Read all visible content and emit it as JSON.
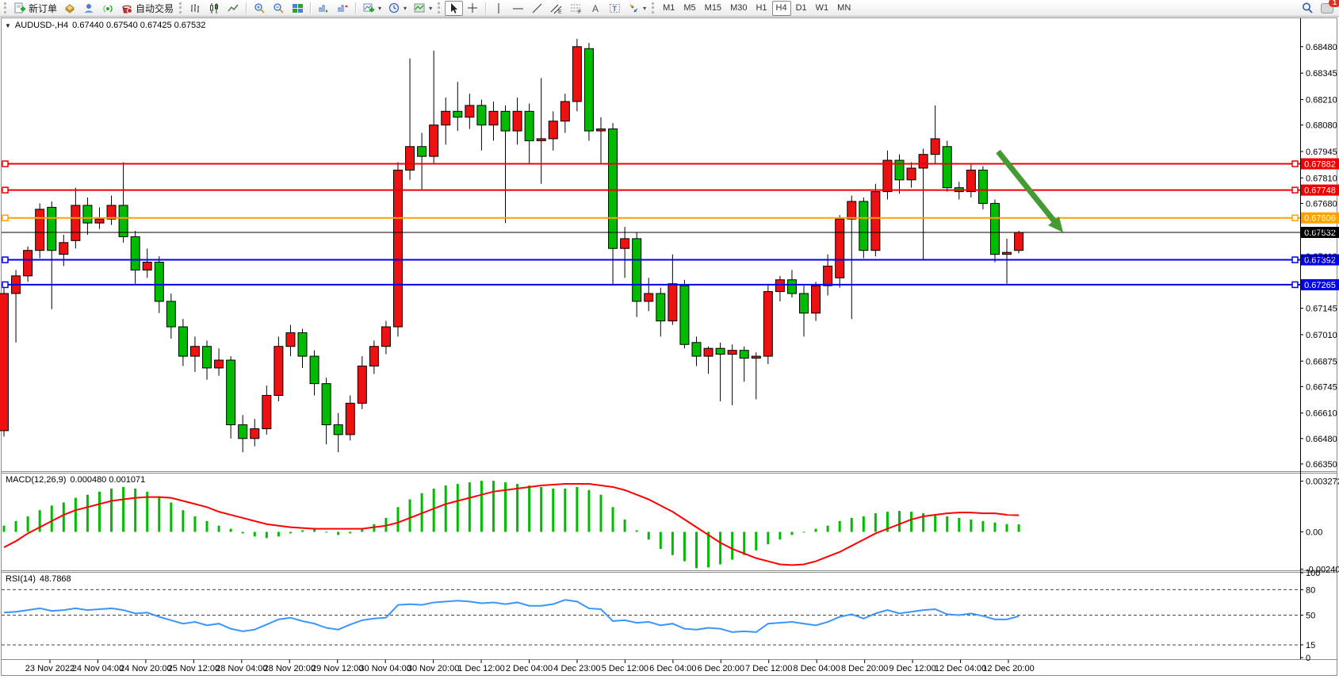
{
  "toolbar": {
    "new_order": "新订单",
    "autotrade": "自动交易",
    "timeframes": [
      "M1",
      "M5",
      "M15",
      "M30",
      "H1",
      "H4",
      "D1",
      "W1",
      "MN"
    ],
    "active_timeframe": "H4",
    "badge": "1",
    "icon_names": [
      "new-order-icon",
      "history-icon",
      "profile-icon",
      "signals-icon",
      "autotrade-icon",
      "bar-chart-icon",
      "candlestick-chart-icon",
      "line-chart-icon",
      "zoom-in-icon",
      "zoom-out-icon",
      "tile-windows-icon",
      "new-chart-icon",
      "period-clock-icon",
      "templates-icon",
      "cursor-icon",
      "crosshair-icon",
      "vertical-line-icon",
      "horizontal-line-icon",
      "trendline-icon",
      "equidistant-channel-icon",
      "fibonacci-icon",
      "text-icon",
      "text-label-icon",
      "arrows-icon",
      "search-icon",
      "notification-icon"
    ]
  },
  "chart": {
    "symbol": "AUDUSD-,H4",
    "ohlc": "0.67440 0.67540 0.67425 0.67532"
  },
  "indicators": {
    "macd": {
      "name": "MACD(12,26,9)",
      "values": "0.000480 0.001071"
    },
    "rsi": {
      "name": "RSI(14)",
      "value": "48.7868"
    }
  },
  "chart_data": {
    "type": "candlestick",
    "title": "AUDUSD-,H4",
    "price_axis_ticks": [
      "0.68480",
      "0.68345",
      "0.68210",
      "0.68080",
      "0.67945",
      "0.67810",
      "0.67680",
      "0.67545",
      "0.67410",
      "0.67145",
      "0.67010",
      "0.66875",
      "0.66745",
      "0.66610",
      "0.66480",
      "0.66350"
    ],
    "time_axis_labels": [
      "23 Nov 2022",
      "24 Nov 04:00",
      "24 Nov 20:00",
      "25 Nov 12:00",
      "28 Nov 04:00",
      "28 Nov 20:00",
      "29 Nov 12:00",
      "30 Nov 04:00",
      "30 Nov 20:00",
      "1 Dec 12:00",
      "2 Dec 04:00",
      "4 Dec 23:00",
      "5 Dec 12:00",
      "6 Dec 04:00",
      "6 Dec 20:00",
      "7 Dec 12:00",
      "8 Dec 04:00",
      "8 Dec 20:00",
      "9 Dec 12:00",
      "12 Dec 04:00",
      "12 Dec 20:00"
    ],
    "levels": [
      {
        "label": "0.67882",
        "value": 0.67882,
        "color": "#ee0000",
        "kind": "resistance"
      },
      {
        "label": "0.67748",
        "value": 0.67748,
        "color": "#ee0000",
        "kind": "resistance"
      },
      {
        "label": "0.67606",
        "value": 0.67606,
        "color": "#ffa200",
        "kind": "pivot"
      },
      {
        "label": "0.67532",
        "value": 0.67532,
        "color": "#000000",
        "kind": "current-price"
      },
      {
        "label": "0.67392",
        "value": 0.67392,
        "color": "#0000ee",
        "kind": "support"
      },
      {
        "label": "0.67265",
        "value": 0.67265,
        "color": "#0000ee",
        "kind": "support"
      }
    ],
    "colors": {
      "up": "#ee1111",
      "down": "#00bb00",
      "wick": "#000000",
      "macd_hist": "#00bb00",
      "macd_signal": "#ff0000",
      "rsi_line": "#3a95fc",
      "arrow": "#459a33"
    },
    "candles_ohlc": [
      [
        0.6652,
        0.6726,
        0.6649,
        0.6722
      ],
      [
        0.6722,
        0.6734,
        0.6697,
        0.6731
      ],
      [
        0.6731,
        0.6746,
        0.6728,
        0.6744
      ],
      [
        0.6744,
        0.6768,
        0.674,
        0.6765
      ],
      [
        0.6766,
        0.6769,
        0.6714,
        0.6744
      ],
      [
        0.6742,
        0.6752,
        0.6736,
        0.6748
      ],
      [
        0.6749,
        0.6776,
        0.6745,
        0.6767
      ],
      [
        0.6767,
        0.6771,
        0.6752,
        0.6758
      ],
      [
        0.6758,
        0.6766,
        0.6755,
        0.676
      ],
      [
        0.676,
        0.6772,
        0.6757,
        0.6767
      ],
      [
        0.6767,
        0.6789,
        0.6748,
        0.6751
      ],
      [
        0.6751,
        0.6754,
        0.6727,
        0.6734
      ],
      [
        0.6734,
        0.6745,
        0.673,
        0.6738
      ],
      [
        0.6738,
        0.6741,
        0.6712,
        0.6718
      ],
      [
        0.6718,
        0.6722,
        0.6699,
        0.6705
      ],
      [
        0.6705,
        0.6709,
        0.6685,
        0.669
      ],
      [
        0.669,
        0.67,
        0.6682,
        0.6695
      ],
      [
        0.6695,
        0.6698,
        0.6678,
        0.6684
      ],
      [
        0.6684,
        0.6694,
        0.668,
        0.6688
      ],
      [
        0.6688,
        0.669,
        0.6648,
        0.6655
      ],
      [
        0.6655,
        0.666,
        0.6641,
        0.6648
      ],
      [
        0.6648,
        0.6658,
        0.6644,
        0.6653
      ],
      [
        0.6653,
        0.6675,
        0.665,
        0.667
      ],
      [
        0.667,
        0.67,
        0.6667,
        0.6695
      ],
      [
        0.6695,
        0.6706,
        0.669,
        0.6702
      ],
      [
        0.6702,
        0.6704,
        0.6684,
        0.669
      ],
      [
        0.669,
        0.6693,
        0.667,
        0.6676
      ],
      [
        0.6676,
        0.6679,
        0.6645,
        0.6655
      ],
      [
        0.6655,
        0.6661,
        0.6641,
        0.665
      ],
      [
        0.665,
        0.667,
        0.6647,
        0.6666
      ],
      [
        0.6666,
        0.669,
        0.6663,
        0.6685
      ],
      [
        0.6685,
        0.6698,
        0.6681,
        0.6695
      ],
      [
        0.6695,
        0.6708,
        0.6691,
        0.6705
      ],
      [
        0.6705,
        0.6789,
        0.67,
        0.6785
      ],
      [
        0.6785,
        0.6842,
        0.678,
        0.6797
      ],
      [
        0.6797,
        0.6804,
        0.6775,
        0.6792
      ],
      [
        0.6792,
        0.6846,
        0.6788,
        0.6808
      ],
      [
        0.6808,
        0.6822,
        0.6798,
        0.6815
      ],
      [
        0.6815,
        0.683,
        0.6805,
        0.6812
      ],
      [
        0.6812,
        0.6824,
        0.6806,
        0.6818
      ],
      [
        0.6818,
        0.6821,
        0.6795,
        0.6808
      ],
      [
        0.6808,
        0.682,
        0.68,
        0.6815
      ],
      [
        0.6815,
        0.6818,
        0.6758,
        0.6805
      ],
      [
        0.6805,
        0.6822,
        0.6798,
        0.6815
      ],
      [
        0.6815,
        0.6819,
        0.6788,
        0.68
      ],
      [
        0.68,
        0.6832,
        0.6778,
        0.6801
      ],
      [
        0.6801,
        0.6815,
        0.6795,
        0.681
      ],
      [
        0.681,
        0.6824,
        0.6804,
        0.682
      ],
      [
        0.682,
        0.6852,
        0.6815,
        0.6848
      ],
      [
        0.6847,
        0.685,
        0.68,
        0.6805
      ],
      [
        0.6805,
        0.6812,
        0.6788,
        0.6806
      ],
      [
        0.6806,
        0.6809,
        0.6726,
        0.6745
      ],
      [
        0.6745,
        0.6756,
        0.673,
        0.675
      ],
      [
        0.675,
        0.6753,
        0.671,
        0.6718
      ],
      [
        0.6718,
        0.673,
        0.6713,
        0.6722
      ],
      [
        0.6722,
        0.6725,
        0.67,
        0.6708
      ],
      [
        0.6708,
        0.6742,
        0.6706,
        0.6727
      ],
      [
        0.6726,
        0.6729,
        0.6694,
        0.6696
      ],
      [
        0.6697,
        0.67,
        0.6685,
        0.669
      ],
      [
        0.669,
        0.6695,
        0.6681,
        0.6694
      ],
      [
        0.6694,
        0.6697,
        0.6667,
        0.6691
      ],
      [
        0.6691,
        0.6696,
        0.6665,
        0.6693
      ],
      [
        0.6693,
        0.6695,
        0.6677,
        0.6689
      ],
      [
        0.6689,
        0.6692,
        0.6668,
        0.669
      ],
      [
        0.669,
        0.6727,
        0.6686,
        0.6723
      ],
      [
        0.6723,
        0.6731,
        0.6718,
        0.6729
      ],
      [
        0.6729,
        0.6734,
        0.672,
        0.6722
      ],
      [
        0.6722,
        0.6726,
        0.67,
        0.6712
      ],
      [
        0.6712,
        0.6728,
        0.6708,
        0.6726
      ],
      [
        0.6726,
        0.6742,
        0.6721,
        0.6736
      ],
      [
        0.673,
        0.6762,
        0.6725,
        0.676
      ],
      [
        0.676,
        0.6772,
        0.6709,
        0.6769
      ],
      [
        0.6769,
        0.6771,
        0.674,
        0.6744
      ],
      [
        0.6744,
        0.6778,
        0.6741,
        0.6774
      ],
      [
        0.6774,
        0.6795,
        0.677,
        0.679
      ],
      [
        0.679,
        0.6793,
        0.6773,
        0.678
      ],
      [
        0.678,
        0.6789,
        0.6776,
        0.6786
      ],
      [
        0.6786,
        0.6796,
        0.6739,
        0.6793
      ],
      [
        0.6793,
        0.6818,
        0.6788,
        0.6801
      ],
      [
        0.6797,
        0.68,
        0.6774,
        0.6776
      ],
      [
        0.6776,
        0.6779,
        0.677,
        0.6774
      ],
      [
        0.6774,
        0.6788,
        0.6771,
        0.6785
      ],
      [
        0.6785,
        0.6787,
        0.6765,
        0.6768
      ],
      [
        0.6768,
        0.677,
        0.6738,
        0.6742
      ],
      [
        0.6742,
        0.675,
        0.6727,
        0.6743
      ],
      [
        0.6744,
        0.6754,
        0.67425,
        0.67532
      ]
    ],
    "macd": {
      "name": "MACD(12,26,9)",
      "axis_ticks": [
        "0.003272",
        "0.00",
        "-0.002409"
      ],
      "histogram": [
        0.0004,
        0.0007,
        0.001,
        0.0014,
        0.0017,
        0.0019,
        0.0022,
        0.0024,
        0.0026,
        0.0028,
        0.0029,
        0.0028,
        0.0026,
        0.0023,
        0.0019,
        0.0014,
        0.001,
        0.0007,
        0.0004,
        0.0002,
        -0.0001,
        -0.0003,
        -0.0004,
        -0.0003,
        -0.0001,
        0.0001,
        0.0002,
        0.0,
        -0.0002,
        -0.0001,
        0.0002,
        0.0005,
        0.0009,
        0.0016,
        0.0021,
        0.0025,
        0.0028,
        0.003,
        0.0031,
        0.0032,
        0.0033,
        0.0033,
        0.0032,
        0.0031,
        0.003,
        0.0029,
        0.0028,
        0.0028,
        0.0029,
        0.0027,
        0.0024,
        0.0016,
        0.0008,
        0.0001,
        -0.0005,
        -0.0011,
        -0.0015,
        -0.0019,
        -0.00235,
        -0.0023,
        -0.0021,
        -0.0018,
        -0.0015,
        -0.0012,
        -0.0008,
        -0.0005,
        -0.0002,
        0.0,
        0.0002,
        0.0004,
        0.0007,
        0.0009,
        0.001,
        0.0012,
        0.0013,
        0.00135,
        0.0013,
        0.0012,
        0.0011,
        0.001,
        0.0009,
        0.0008,
        0.0007,
        0.0006,
        0.0005,
        0.00048
      ],
      "signal": [
        -0.001,
        -0.0006,
        -0.0001,
        0.0003,
        0.0007,
        0.0011,
        0.0014,
        0.0016,
        0.0018,
        0.002,
        0.0021,
        0.0022,
        0.00225,
        0.00225,
        0.0022,
        0.002,
        0.0018,
        0.0016,
        0.0013,
        0.0011,
        0.0009,
        0.0007,
        0.0005,
        0.0004,
        0.0003,
        0.00025,
        0.0002,
        0.0002,
        0.0002,
        0.0002,
        0.0002,
        0.0003,
        0.0004,
        0.0006,
        0.0009,
        0.0012,
        0.0015,
        0.0018,
        0.002,
        0.0022,
        0.0024,
        0.0026,
        0.0027,
        0.0028,
        0.0029,
        0.003,
        0.00305,
        0.0031,
        0.0031,
        0.0031,
        0.003,
        0.0029,
        0.0027,
        0.0024,
        0.0021,
        0.0017,
        0.0013,
        0.0008,
        0.0003,
        -0.0002,
        -0.0007,
        -0.0011,
        -0.0014,
        -0.0017,
        -0.0019,
        -0.0021,
        -0.00215,
        -0.0021,
        -0.0019,
        -0.0016,
        -0.0013,
        -0.0009,
        -0.0005,
        -0.0001,
        0.0002,
        0.0005,
        0.0008,
        0.001,
        0.0011,
        0.0012,
        0.00125,
        0.00125,
        0.0012,
        0.0012,
        0.0011,
        0.00107
      ]
    },
    "rsi": {
      "name": "RSI(14)",
      "axis_ticks": [
        "100",
        "80",
        "50",
        "15",
        "0"
      ],
      "dashed_levels": [
        80,
        50,
        15
      ],
      "values": [
        53,
        54,
        56,
        58,
        55,
        56,
        58,
        56,
        57,
        58,
        56,
        52,
        53,
        48,
        44,
        40,
        42,
        38,
        40,
        34,
        31,
        33,
        39,
        45,
        47,
        43,
        40,
        35,
        33,
        39,
        44,
        46,
        47,
        62,
        63,
        62,
        65,
        66,
        67,
        66,
        64,
        65,
        63,
        65,
        61,
        61,
        63,
        68,
        66,
        58,
        57,
        43,
        44,
        41,
        42,
        38,
        40,
        34,
        33,
        35,
        34,
        30,
        31,
        30,
        40,
        41,
        42,
        40,
        38,
        42,
        48,
        51,
        46,
        52,
        56,
        52,
        54,
        56,
        57,
        51,
        50,
        52,
        49,
        45,
        45,
        48.79
      ]
    },
    "annotations": [
      {
        "type": "arrow",
        "color": "#459a33",
        "from_price": 0.6805,
        "to_price": 0.6742,
        "note": "bearish-projection-arrow"
      }
    ]
  }
}
